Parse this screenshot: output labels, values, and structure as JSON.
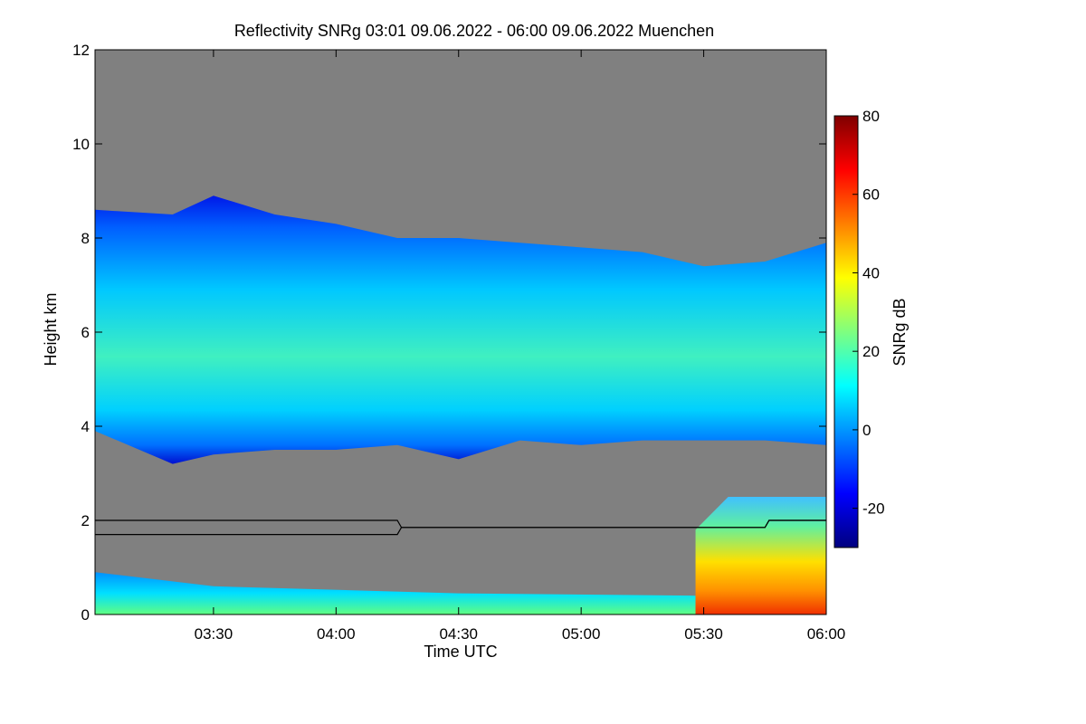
{
  "chart_data": {
    "type": "heatmap",
    "title": "Reflectivity SNRg   03:01 09.06.2022 - 06:00 09.06.2022 Muenchen",
    "xlabel": "Time UTC",
    "ylabel": "Height km",
    "colorbar_label": "SNRg dB",
    "xlim": [
      "03:01",
      "06:00"
    ],
    "ylim": [
      0,
      12
    ],
    "x_ticks": [
      "03:30",
      "04:00",
      "04:30",
      "05:00",
      "05:30",
      "06:00"
    ],
    "y_ticks": [
      "0",
      "2",
      "4",
      "6",
      "8",
      "10",
      "12"
    ],
    "colorbar_range": [
      -30,
      80
    ],
    "colorbar_ticks": [
      "-20",
      "0",
      "20",
      "40",
      "60",
      "80"
    ],
    "colormap": [
      "#00007f",
      "#0000ff",
      "#007fff",
      "#00ffff",
      "#7fff7f",
      "#ffff00",
      "#ff7f00",
      "#ff0000",
      "#7f0000"
    ],
    "background_color": "#808080",
    "cloud_layer": {
      "time": [
        "03:01",
        "03:20",
        "03:30",
        "03:45",
        "04:00",
        "04:15",
        "04:30",
        "04:45",
        "05:00",
        "05:15",
        "05:30",
        "05:45",
        "06:00"
      ],
      "top_km": [
        8.6,
        8.5,
        8.9,
        8.5,
        8.3,
        8.0,
        8.0,
        7.9,
        7.8,
        7.7,
        7.4,
        7.5,
        7.9
      ],
      "base_km": [
        3.9,
        3.2,
        3.4,
        3.5,
        3.5,
        3.6,
        3.3,
        3.7,
        3.6,
        3.7,
        3.7,
        3.7,
        3.6
      ],
      "peak_snr_db": 25
    },
    "boundary_layer_height": {
      "time": [
        "03:01",
        "04:15",
        "04:16",
        "05:45",
        "05:46",
        "06:00"
      ],
      "upper_km": [
        2.0,
        2.0,
        1.85,
        1.85,
        2.0,
        2.0
      ],
      "lower_km": [
        1.7,
        1.7,
        1.85,
        1.85,
        2.0,
        2.0
      ]
    },
    "precipitation": {
      "start": "05:28",
      "end": "06:00",
      "top_km": 2.5,
      "peak_snr_db": 60
    }
  }
}
